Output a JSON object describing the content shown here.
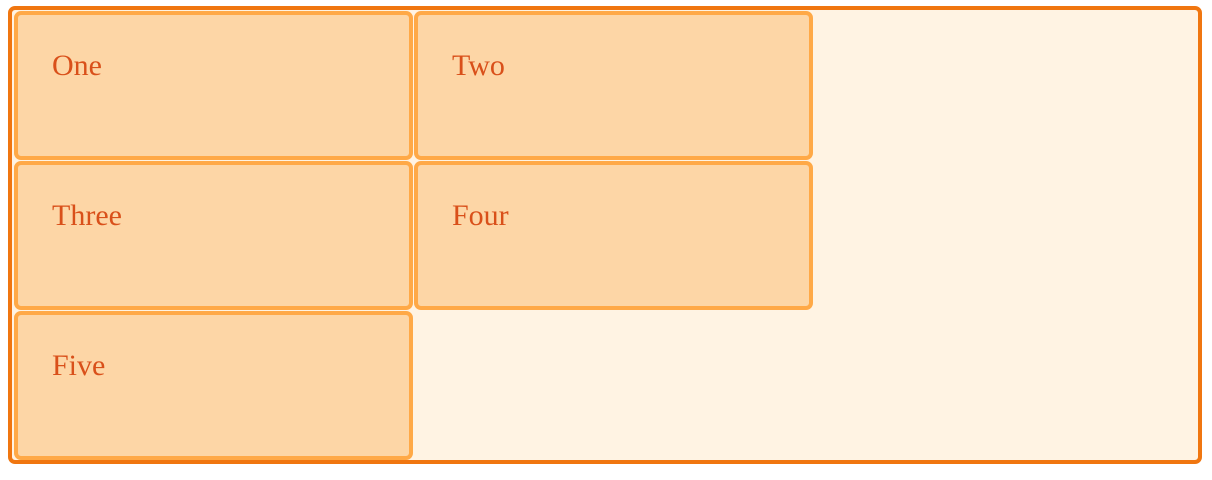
{
  "grid": {
    "items": [
      {
        "label": "One"
      },
      {
        "label": "Two"
      },
      {
        "label": "Three"
      },
      {
        "label": "Four"
      },
      {
        "label": "Five"
      }
    ]
  },
  "colors": {
    "wrapper_border": "#f07610",
    "wrapper_background": "#fff3e3",
    "box_border": "#ffa947",
    "box_background": "#fdd6a6",
    "text": "#d9501a"
  }
}
